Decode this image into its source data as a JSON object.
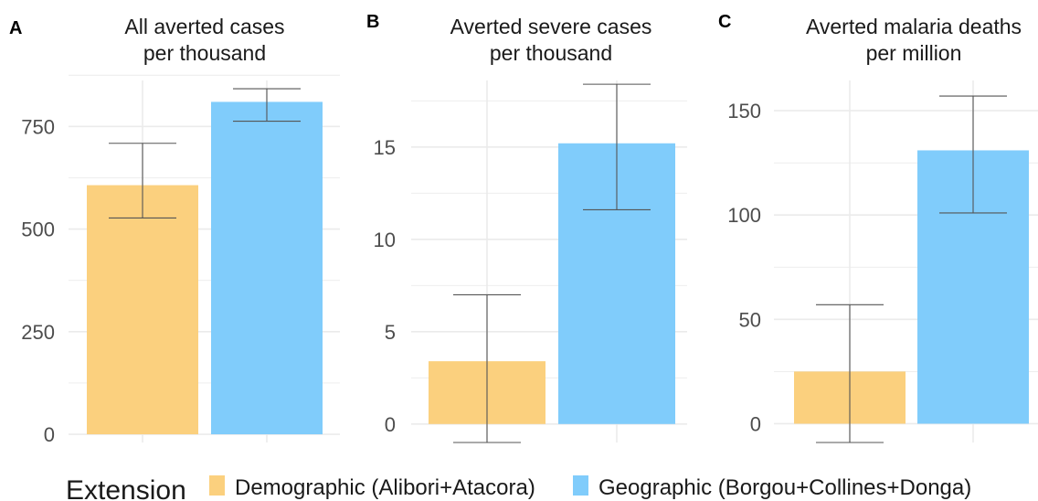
{
  "colors": {
    "demographic": "#fbd07e",
    "geographic": "#80ccfb",
    "grid": "#ebebeb",
    "errorbar": "#555555",
    "text": "#4d4d4d",
    "title": "#1a1a1a"
  },
  "legend": {
    "title": "Extension",
    "items": [
      {
        "label": "Demographic (Alibori+Atacora)",
        "color": "#fbd07e"
      },
      {
        "label": "Geographic (Borgou+Collines+Donga)",
        "color": "#80ccfb"
      }
    ],
    "position": "bottom"
  },
  "chart_data": [
    {
      "type": "bar",
      "panel": "A",
      "title": "All averted cases\nper thousand",
      "categories": [
        "Demographic (Alibori+Atacora)",
        "Geographic (Borgou+Collines+Donga)"
      ],
      "values": [
        607,
        810
      ],
      "error_low": [
        527,
        763
      ],
      "error_high": [
        709,
        842
      ],
      "yticks": [
        0,
        250,
        500,
        750
      ],
      "ylim": [
        -20,
        880
      ],
      "grid": true
    },
    {
      "type": "bar",
      "panel": "B",
      "title": "Averted severe cases\nper thousand",
      "categories": [
        "Demographic (Alibori+Atacora)",
        "Geographic (Borgou+Collines+Donga)"
      ],
      "values": [
        3.4,
        15.2
      ],
      "error_low": [
        -1.0,
        11.6
      ],
      "error_high": [
        7.0,
        18.4
      ],
      "yticks": [
        0,
        5,
        10,
        15
      ],
      "ylim": [
        -1.0,
        19.0
      ],
      "grid": true
    },
    {
      "type": "bar",
      "panel": "C",
      "title": "Averted malaria deaths\nper million",
      "categories": [
        "Demographic (Alibori+Atacora)",
        "Geographic (Borgou+Collines+Donga)"
      ],
      "values": [
        25,
        131
      ],
      "error_low": [
        -9,
        101
      ],
      "error_high": [
        57,
        157
      ],
      "yticks": [
        0,
        50,
        100,
        150
      ],
      "ylim": [
        -9,
        168
      ],
      "grid": true
    }
  ]
}
